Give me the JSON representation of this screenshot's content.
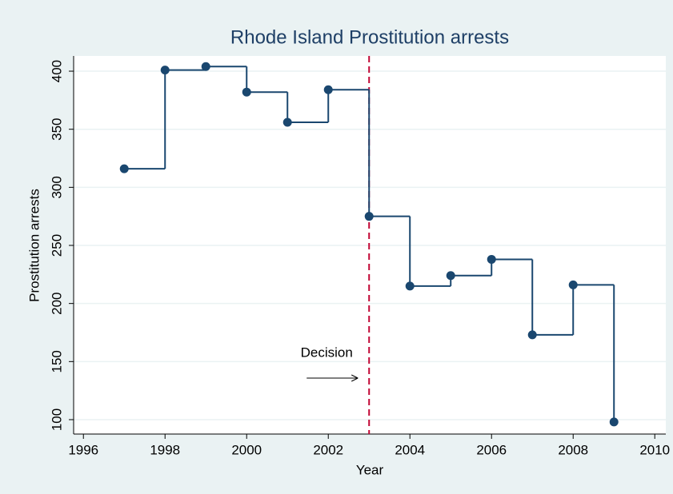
{
  "chart_data": {
    "type": "line",
    "step": true,
    "title": "Rhode Island Prostitution arrests",
    "x_label": "Year",
    "y_label": "Prostitution arrests",
    "x": [
      1997,
      1998,
      1999,
      2000,
      2001,
      2002,
      2003,
      2004,
      2005,
      2006,
      2007,
      2008,
      2009
    ],
    "series": [
      {
        "name": "Prostitution arrests",
        "color": "#1a476f",
        "values": [
          316,
          401,
          404,
          382,
          356,
          384,
          275,
          215,
          224,
          238,
          173,
          216,
          98
        ]
      }
    ],
    "xlim": [
      1995.76,
      2010.27
    ],
    "xticks": [
      1996,
      1998,
      2000,
      2002,
      2004,
      2006,
      2008,
      2010
    ],
    "ylim": [
      87.6,
      413.1
    ],
    "yticks": [
      100,
      150,
      200,
      250,
      300,
      350,
      400
    ],
    "grid": true,
    "xline": {
      "value": 2003,
      "color": "#c10534"
    },
    "annotation": "Decision"
  }
}
